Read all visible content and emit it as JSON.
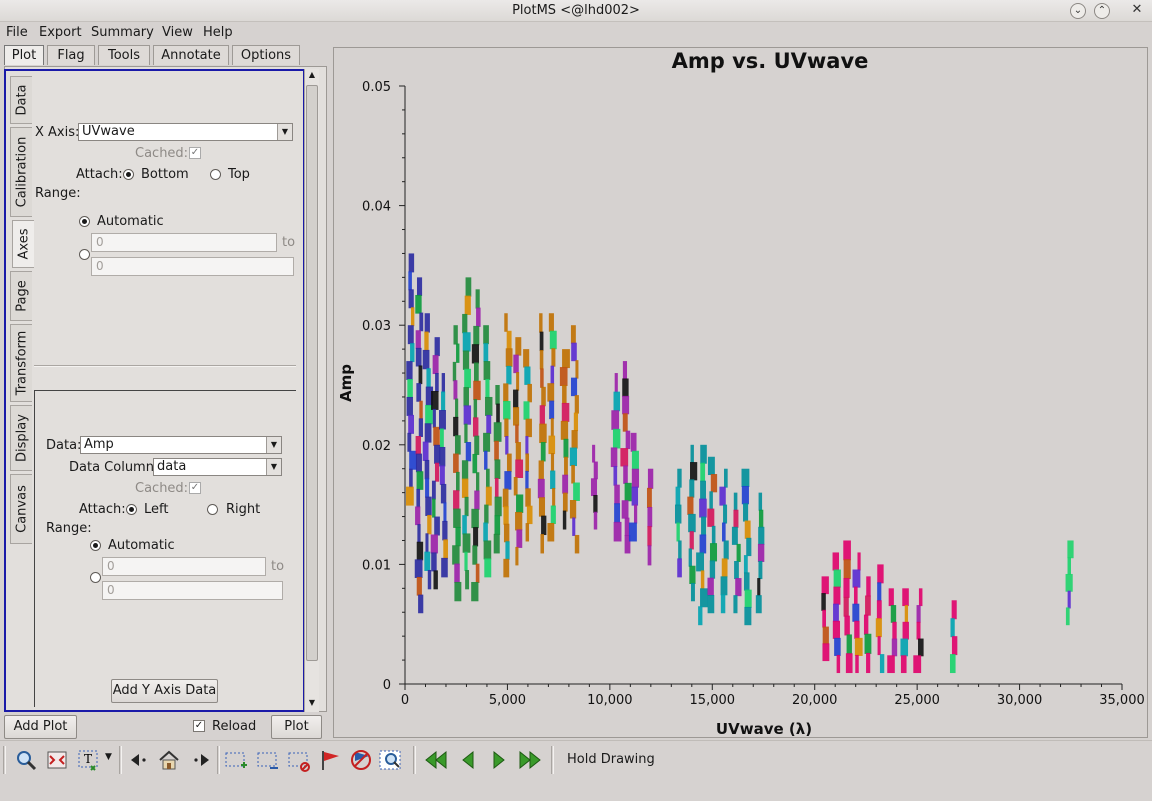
{
  "window": {
    "title": "PlotMS <@lhd002>"
  },
  "menu": [
    "File",
    "Export",
    "Summary",
    "View",
    "Help"
  ],
  "top_tabs": [
    "Plot",
    "Flag",
    "Tools",
    "Annotate",
    "Options"
  ],
  "side_tabs": [
    "Data",
    "Calibration",
    "Axes",
    "Page",
    "Transform",
    "Display",
    "Canvas"
  ],
  "x_axis": {
    "label": "X Axis:",
    "value": "UVwave",
    "cached_label": "Cached:",
    "attach_label": "Attach:",
    "attach_bottom": "Bottom",
    "attach_top": "Top",
    "range_label": "Range:",
    "automatic": "Automatic",
    "from_placeholder": "0",
    "to_label": "to",
    "to_placeholder": "0"
  },
  "y_axis": {
    "data_label": "Data:",
    "data_value": "Amp",
    "column_label": "Data Column:",
    "column_value": "data",
    "cached_label": "Cached:",
    "attach_label": "Attach:",
    "attach_left": "Left",
    "attach_right": "Right",
    "range_label": "Range:",
    "automatic": "Automatic",
    "from_placeholder": "0",
    "to_label": "to",
    "to_placeholder": "0",
    "add_button": "Add Y Axis Data"
  },
  "bottom_controls": {
    "add_plot": "Add Plot",
    "reload": "Reload",
    "plot": "Plot"
  },
  "toolbar": {
    "hold_drawing": "Hold Drawing"
  },
  "colors": {
    "selection_frame": "#1a1aa8"
  },
  "chart_data": {
    "type": "scatter",
    "title": "Amp vs. UVwave",
    "xlabel": "UVwave (λ)",
    "ylabel": "Amp",
    "xlim": [
      0,
      35000
    ],
    "ylim": [
      0,
      0.05
    ],
    "x_ticks": [
      "0",
      "5,000",
      "10,000",
      "15,000",
      "20,000",
      "25,000",
      "30,000",
      "35,000"
    ],
    "y_ticks": [
      "0",
      "0.01",
      "0.02",
      "0.03",
      "0.04",
      "0.05"
    ],
    "series": [
      {
        "values": [
          [
            300,
            0.015,
            0.036
          ],
          [
            700,
            0.006,
            0.034
          ],
          [
            1100,
            0.008,
            0.031
          ],
          [
            1500,
            0.008,
            0.029
          ],
          [
            1900,
            0.009,
            0.026
          ]
        ],
        "color": "#2a2aa0"
      },
      {
        "values": [
          [
            2500,
            0.007,
            0.03
          ],
          [
            3000,
            0.008,
            0.034
          ],
          [
            3500,
            0.007,
            0.033
          ],
          [
            4000,
            0.009,
            0.03
          ],
          [
            4500,
            0.011,
            0.025
          ]
        ],
        "color": "#1f8a3a"
      },
      {
        "values": [
          [
            5000,
            0.009,
            0.031
          ],
          [
            5500,
            0.01,
            0.029
          ],
          [
            6000,
            0.012,
            0.028
          ],
          [
            6700,
            0.011,
            0.031
          ],
          [
            7200,
            0.012,
            0.031
          ],
          [
            7800,
            0.013,
            0.028
          ],
          [
            8300,
            0.011,
            0.03
          ]
        ],
        "color": "#c07000"
      },
      {
        "values": [
          [
            9300,
            0.013,
            0.02
          ],
          [
            10300,
            0.012,
            0.026
          ],
          [
            10800,
            0.011,
            0.027
          ],
          [
            11200,
            0.012,
            0.021
          ],
          [
            12000,
            0.01,
            0.018
          ]
        ],
        "color": "#9b1fa8"
      },
      {
        "values": [
          [
            13400,
            0.009,
            0.018
          ],
          [
            14000,
            0.007,
            0.02
          ],
          [
            14500,
            0.005,
            0.02
          ],
          [
            15000,
            0.006,
            0.019
          ],
          [
            15600,
            0.006,
            0.018
          ],
          [
            16200,
            0.006,
            0.016
          ],
          [
            16700,
            0.005,
            0.018
          ],
          [
            17300,
            0.006,
            0.016
          ]
        ],
        "color": "#008f9a"
      },
      {
        "values": [
          [
            20500,
            0.002,
            0.009
          ],
          [
            21100,
            0.001,
            0.011
          ],
          [
            21600,
            0.001,
            0.012
          ],
          [
            22100,
            0.001,
            0.011
          ],
          [
            22600,
            0.001,
            0.009
          ],
          [
            23200,
            0.001,
            0.01
          ],
          [
            23800,
            0.001,
            0.008
          ],
          [
            24400,
            0.001,
            0.008
          ],
          [
            25100,
            0.001,
            0.008
          ],
          [
            26800,
            0.001,
            0.007
          ]
        ],
        "color": "#e0006a"
      },
      {
        "values": [
          [
            32400,
            0.005,
            0.012
          ]
        ],
        "color": "#1fd36a"
      }
    ]
  }
}
